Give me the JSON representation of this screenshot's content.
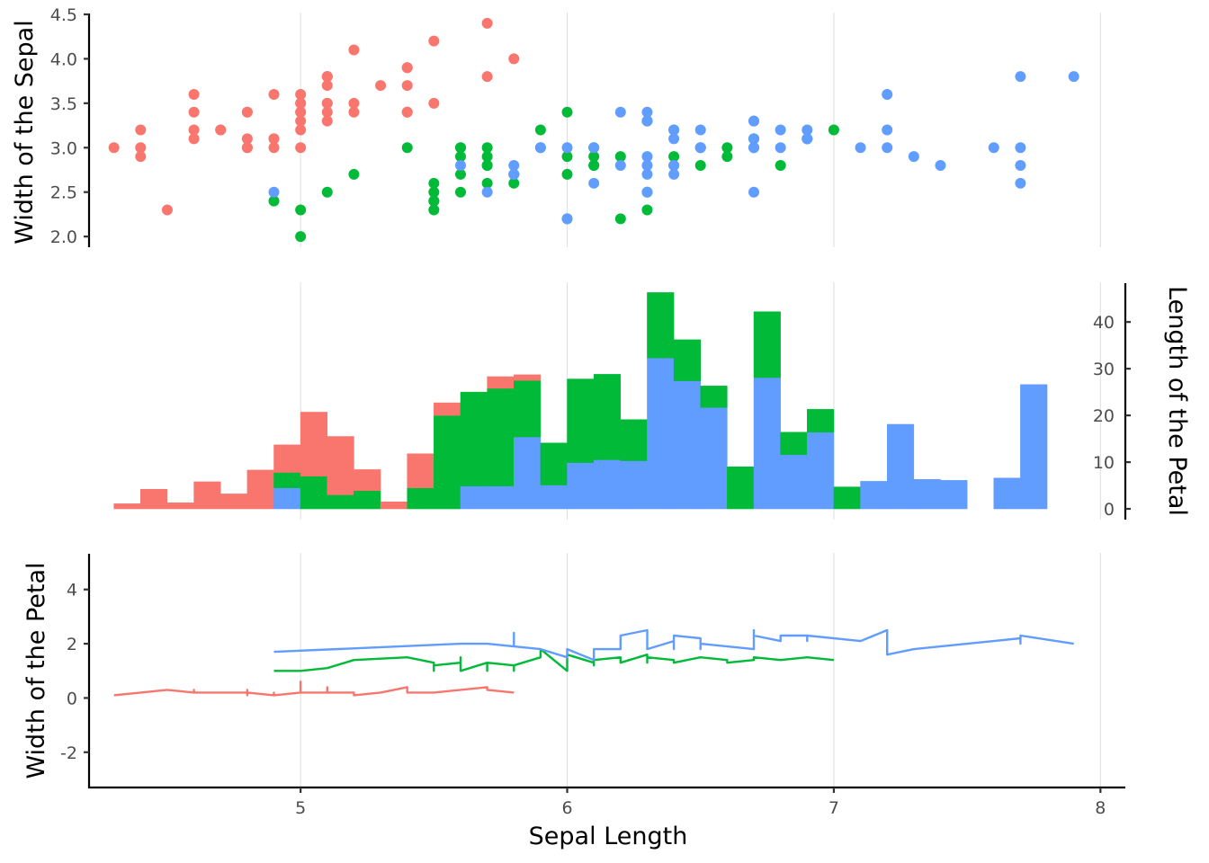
{
  "colors": {
    "setosa": "#F8766D",
    "versicolor": "#00BA38",
    "virginica": "#619CFF"
  },
  "chart_data": [
    {
      "panel": "top",
      "type": "scatter",
      "xlabel": "",
      "ylabel": "Width of the Sepal",
      "xlim": [
        4.21,
        8.09
      ],
      "ylim": [
        1.88,
        4.52
      ],
      "yticks": [
        2.0,
        2.5,
        3.0,
        3.5,
        4.0,
        4.5
      ],
      "ytick_labels": [
        "2.0",
        "2.5",
        "3.0",
        "3.5",
        "4.0",
        "4.5"
      ],
      "grid": "vertical",
      "series": [
        {
          "color_key": "setosa",
          "x": [
            5.1,
            4.9,
            4.7,
            4.6,
            5.0,
            5.4,
            4.6,
            5.0,
            4.4,
            4.9,
            5.4,
            4.8,
            4.8,
            4.3,
            5.8,
            5.7,
            5.4,
            5.1,
            5.7,
            5.1,
            5.4,
            5.1,
            4.6,
            5.1,
            4.8,
            5.0,
            5.0,
            5.2,
            5.2,
            4.7,
            4.8,
            5.4,
            5.2,
            5.5,
            4.9,
            5.0,
            5.5,
            4.9,
            4.4,
            5.1,
            5.0,
            4.5,
            4.4,
            5.0,
            5.1,
            4.8,
            5.1,
            4.6,
            5.3,
            5.0
          ],
          "y": [
            3.5,
            3.0,
            3.2,
            3.1,
            3.6,
            3.9,
            3.4,
            3.4,
            2.9,
            3.1,
            3.7,
            3.4,
            3.0,
            3.0,
            4.0,
            4.4,
            3.9,
            3.5,
            3.8,
            3.8,
            3.4,
            3.7,
            3.6,
            3.3,
            3.4,
            3.0,
            3.4,
            3.5,
            3.4,
            3.2,
            3.1,
            3.4,
            4.1,
            4.2,
            3.1,
            3.2,
            3.5,
            3.6,
            3.0,
            3.4,
            3.5,
            2.3,
            3.2,
            3.5,
            3.8,
            3.0,
            3.8,
            3.2,
            3.7,
            3.3
          ]
        },
        {
          "color_key": "versicolor",
          "x": [
            7.0,
            6.4,
            6.9,
            5.5,
            6.5,
            5.7,
            6.3,
            4.9,
            6.6,
            5.2,
            5.0,
            5.9,
            6.0,
            6.1,
            5.6,
            6.7,
            5.6,
            5.8,
            6.2,
            5.6,
            5.9,
            6.1,
            6.3,
            6.1,
            6.4,
            6.6,
            6.8,
            6.7,
            6.0,
            5.7,
            5.5,
            5.5,
            5.8,
            6.0,
            5.4,
            6.0,
            6.7,
            6.3,
            5.6,
            5.5,
            5.5,
            6.1,
            5.8,
            5.0,
            5.6,
            5.7,
            5.7,
            6.2,
            5.1,
            5.7
          ],
          "y": [
            3.2,
            3.2,
            3.1,
            2.3,
            2.8,
            2.8,
            3.3,
            2.4,
            2.9,
            2.7,
            2.0,
            3.0,
            2.2,
            2.9,
            2.9,
            3.1,
            3.0,
            2.7,
            2.2,
            2.5,
            3.2,
            2.8,
            2.5,
            2.8,
            2.9,
            3.0,
            2.8,
            3.0,
            2.9,
            2.6,
            2.4,
            2.4,
            2.7,
            2.7,
            3.0,
            3.4,
            3.1,
            2.3,
            3.0,
            2.5,
            2.6,
            3.0,
            2.6,
            2.3,
            2.7,
            3.0,
            2.9,
            2.9,
            2.5,
            2.8
          ]
        },
        {
          "color_key": "virginica",
          "x": [
            6.3,
            5.8,
            7.1,
            6.3,
            6.5,
            7.6,
            4.9,
            7.3,
            6.7,
            7.2,
            6.5,
            6.4,
            6.8,
            5.7,
            5.8,
            6.4,
            6.5,
            7.7,
            7.7,
            6.0,
            6.9,
            5.6,
            7.7,
            6.3,
            6.7,
            7.2,
            6.2,
            6.1,
            6.4,
            7.2,
            7.4,
            7.9,
            6.4,
            6.3,
            6.1,
            7.7,
            6.3,
            6.4,
            6.0,
            6.9,
            6.7,
            6.9,
            5.8,
            6.8,
            6.7,
            6.7,
            6.3,
            6.5,
            6.2,
            5.9
          ],
          "y": [
            3.3,
            2.7,
            3.0,
            2.9,
            3.0,
            3.0,
            2.5,
            2.9,
            2.5,
            3.6,
            3.2,
            2.7,
            3.0,
            2.5,
            2.8,
            3.2,
            3.0,
            3.8,
            2.6,
            2.2,
            3.2,
            2.8,
            2.8,
            2.7,
            3.3,
            3.2,
            2.8,
            3.0,
            2.8,
            3.0,
            2.8,
            3.8,
            2.8,
            2.8,
            2.6,
            3.0,
            3.4,
            3.1,
            3.0,
            3.1,
            3.1,
            3.1,
            2.7,
            3.2,
            3.3,
            3.0,
            2.5,
            3.0,
            3.4,
            3.0
          ]
        }
      ]
    },
    {
      "panel": "middle",
      "type": "bar",
      "stacked": true,
      "xlabel": "",
      "ylabel": "Length of the Petal",
      "yaxis_side": "right",
      "xlim": [
        4.21,
        8.09
      ],
      "ylim": [
        -2.3,
        48.5
      ],
      "yticks": [
        0,
        10,
        20,
        30,
        40
      ],
      "ytick_labels": [
        "0",
        "10",
        "20",
        "30",
        "40"
      ],
      "grid": "vertical",
      "bin_width": 0.1,
      "bin_starts": [
        4.3,
        4.4,
        4.5,
        4.6,
        4.7,
        4.8,
        4.9,
        5.0,
        5.1,
        5.2,
        5.3,
        5.4,
        5.5,
        5.6,
        5.7,
        5.8,
        5.9,
        6.0,
        6.1,
        6.2,
        6.3,
        6.4,
        6.5,
        6.6,
        6.7,
        6.8,
        6.9,
        7.0,
        7.1,
        7.2,
        7.3,
        7.4,
        7.5,
        7.6,
        7.7
      ],
      "series": [
        {
          "color_key": "virginica",
          "values": [
            0,
            0,
            0,
            0,
            0,
            0,
            4.5,
            0,
            0,
            0,
            0,
            0,
            0,
            4.9,
            4.9,
            15.4,
            5.1,
            9.9,
            10.5,
            10.3,
            32.3,
            27.4,
            21.7,
            0,
            28.1,
            11.6,
            16.4,
            0,
            5.9,
            18.1,
            6.3,
            6.1,
            0,
            6.6,
            26.6
          ]
        },
        {
          "color_key": "versicolor",
          "values": [
            0,
            0,
            0,
            0,
            0,
            0,
            3.3,
            7.0,
            3.0,
            3.9,
            0,
            4.5,
            20.0,
            20.1,
            20.9,
            12.1,
            9.0,
            17.9,
            18.3,
            8.8,
            14.0,
            8.8,
            4.6,
            9.0,
            14.1,
            4.8,
            4.9,
            4.7,
            0,
            0,
            0,
            0,
            0,
            0,
            0
          ]
        },
        {
          "color_key": "setosa",
          "values": [
            1.1,
            4.2,
            1.3,
            5.8,
            3.2,
            8.3,
            5.9,
            13.7,
            12.5,
            4.5,
            1.5,
            7.3,
            2.7,
            0,
            2.5,
            1.2,
            0,
            0,
            0,
            0,
            0,
            0,
            0,
            0,
            0,
            0,
            0,
            0,
            0,
            0,
            0,
            0,
            0,
            0,
            0
          ]
        }
      ]
    },
    {
      "panel": "bottom",
      "type": "line",
      "xlabel": "Sepal Length",
      "ylabel": "Width of the Petal",
      "xlim": [
        4.21,
        8.09
      ],
      "ylim": [
        -3.3,
        5.35
      ],
      "xticks": [
        5,
        6,
        7,
        8
      ],
      "xtick_labels": [
        "5",
        "6",
        "7",
        "8"
      ],
      "yticks": [
        -2,
        0,
        2,
        4
      ],
      "ytick_labels": [
        "-2",
        "0",
        "2",
        "4"
      ],
      "grid": "vertical",
      "series": [
        {
          "color_key": "setosa",
          "x": [
            4.3,
            4.4,
            4.4,
            4.4,
            4.5,
            4.6,
            4.6,
            4.6,
            4.6,
            4.7,
            4.7,
            4.8,
            4.8,
            4.8,
            4.8,
            4.8,
            4.9,
            4.9,
            4.9,
            4.9,
            5.0,
            5.0,
            5.0,
            5.0,
            5.0,
            5.0,
            5.0,
            5.0,
            5.1,
            5.1,
            5.1,
            5.1,
            5.1,
            5.1,
            5.1,
            5.1,
            5.2,
            5.2,
            5.2,
            5.3,
            5.4,
            5.4,
            5.4,
            5.4,
            5.4,
            5.5,
            5.5,
            5.7,
            5.7,
            5.8
          ],
          "y": [
            0.1,
            0.2,
            0.2,
            0.2,
            0.3,
            0.2,
            0.3,
            0.2,
            0.2,
            0.2,
            0.2,
            0.2,
            0.2,
            0.1,
            0.3,
            0.2,
            0.1,
            0.1,
            0.2,
            0.1,
            0.2,
            0.2,
            0.2,
            0.6,
            0.3,
            0.2,
            0.4,
            0.2,
            0.2,
            0.2,
            0.4,
            0.3,
            0.3,
            0.2,
            0.4,
            0.2,
            0.2,
            0.2,
            0.1,
            0.2,
            0.4,
            0.2,
            0.4,
            0.2,
            0.2,
            0.2,
            0.2,
            0.4,
            0.3,
            0.2
          ]
        },
        {
          "color_key": "versicolor",
          "x": [
            4.9,
            5.0,
            5.0,
            5.1,
            5.2,
            5.4,
            5.5,
            5.5,
            5.5,
            5.5,
            5.5,
            5.6,
            5.6,
            5.6,
            5.6,
            5.6,
            5.7,
            5.7,
            5.7,
            5.7,
            5.7,
            5.8,
            5.8,
            5.8,
            5.9,
            5.9,
            6.0,
            6.0,
            6.0,
            6.0,
            6.1,
            6.1,
            6.1,
            6.1,
            6.2,
            6.2,
            6.3,
            6.3,
            6.3,
            6.4,
            6.4,
            6.5,
            6.6,
            6.6,
            6.7,
            6.7,
            6.7,
            6.8,
            6.9,
            7.0
          ],
          "y": [
            1.0,
            1.0,
            1.0,
            1.1,
            1.4,
            1.5,
            1.3,
            1.1,
            1.3,
            1.0,
            1.2,
            1.3,
            1.3,
            1.3,
            1.5,
            1.0,
            1.3,
            1.3,
            1.0,
            1.2,
            1.3,
            1.2,
            1.0,
            1.2,
            1.5,
            1.8,
            1.0,
            1.5,
            1.6,
            1.6,
            1.3,
            1.4,
            1.2,
            1.4,
            1.5,
            1.3,
            1.6,
            1.3,
            1.5,
            1.4,
            1.3,
            1.5,
            1.4,
            1.3,
            1.4,
            1.5,
            1.5,
            1.4,
            1.5,
            1.4
          ]
        },
        {
          "color_key": "virginica",
          "x": [
            4.9,
            5.6,
            5.7,
            5.8,
            5.8,
            5.8,
            5.9,
            6.0,
            6.0,
            6.1,
            6.1,
            6.2,
            6.2,
            6.3,
            6.3,
            6.3,
            6.3,
            6.3,
            6.3,
            6.4,
            6.4,
            6.4,
            6.4,
            6.4,
            6.5,
            6.5,
            6.5,
            6.5,
            6.7,
            6.7,
            6.7,
            6.7,
            6.7,
            6.8,
            6.8,
            6.9,
            6.9,
            6.9,
            7.1,
            7.2,
            7.2,
            7.2,
            7.3,
            7.4,
            7.6,
            7.7,
            7.7,
            7.7,
            7.7,
            7.9
          ],
          "y": [
            1.7,
            2.0,
            2.0,
            1.9,
            2.4,
            1.9,
            1.8,
            1.5,
            1.8,
            1.4,
            1.8,
            1.8,
            2.3,
            2.5,
            1.8,
            1.8,
            2.4,
            1.9,
            1.8,
            2.1,
            1.8,
            1.9,
            2.2,
            2.3,
            2.2,
            2.0,
            1.8,
            2.0,
            1.8,
            2.5,
            2.3,
            2.5,
            2.3,
            2.1,
            2.3,
            2.3,
            2.1,
            2.3,
            2.1,
            2.5,
            1.8,
            1.6,
            1.8,
            1.9,
            2.1,
            2.2,
            2.3,
            2.0,
            2.3,
            2.0
          ]
        }
      ]
    }
  ]
}
